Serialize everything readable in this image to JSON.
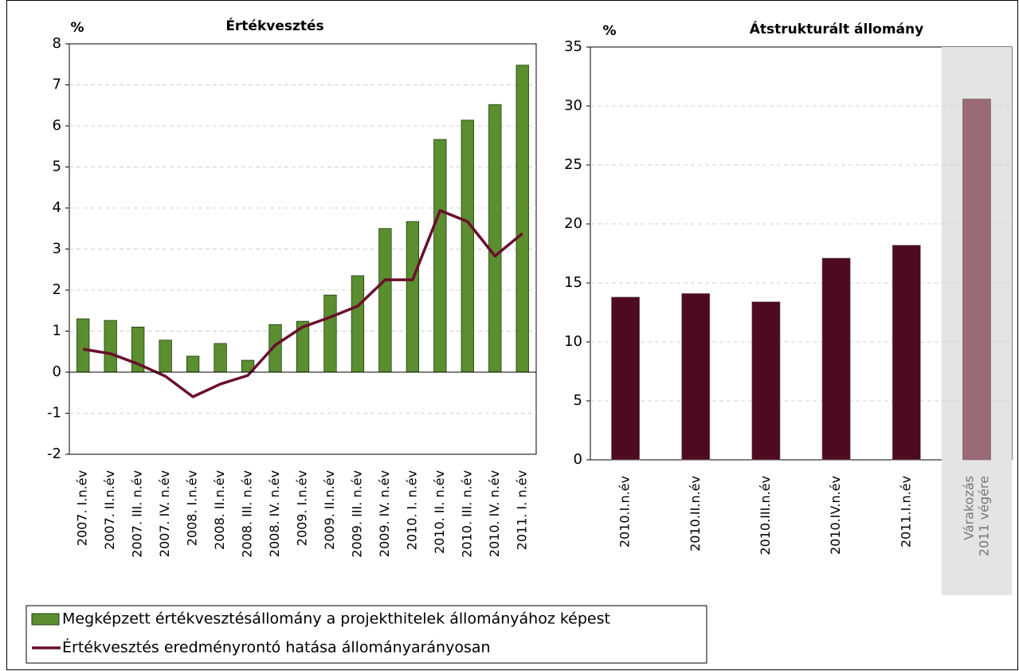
{
  "chart_data": [
    {
      "type": "bar",
      "title": "Értékvesztés",
      "ylabel": "%",
      "categories": [
        "2007. I.n.év",
        "2007. II.n.év",
        "2007. III. n.év",
        "2007. IV. n.év",
        "2008. I.n.év",
        "2008. II.n.év",
        "2008. III. n.év",
        "2008. IV. n.év",
        "2009. I.n.év",
        "2009. II.n.év",
        "2009. III. n.év",
        "2009. IV. n.év",
        "2010. I. n.év",
        "2010. II. n.év",
        "2010. III. n.év",
        "2010. IV. n.év",
        "2011. I. n.év"
      ],
      "series": [
        {
          "name": "Megképzett értékvesztésállomány a projekthitelek állományához képest",
          "type": "bar",
          "color": "#5b8e2f",
          "values": [
            1.3,
            1.26,
            1.1,
            0.78,
            0.39,
            0.7,
            0.29,
            1.16,
            1.24,
            1.88,
            2.35,
            3.5,
            3.67,
            5.67,
            6.14,
            6.52,
            7.48
          ]
        },
        {
          "name": "Értékvesztés eredményrontó hatása állományarányosan",
          "type": "line",
          "color": "#6a0f2c",
          "values": [
            0.56,
            0.45,
            0.2,
            -0.1,
            -0.6,
            -0.29,
            -0.08,
            0.66,
            1.1,
            1.34,
            1.61,
            2.25,
            2.25,
            3.94,
            3.67,
            2.83,
            3.38
          ]
        }
      ],
      "ylim": [
        -2,
        8
      ],
      "yticks": [
        -2,
        -1,
        0,
        1,
        2,
        3,
        4,
        5,
        6,
        7,
        8
      ],
      "grid": true,
      "legend": "bottom"
    },
    {
      "type": "bar",
      "title": "Átstrukturált állomány",
      "ylabel": "%",
      "categories": [
        "2010.I.n.év",
        "2010.II.n.év",
        "2010.III.n.év",
        "2010.IV.n.év",
        "2011.I.n.év",
        "Várakozás\n2011 végére"
      ],
      "values": [
        13.8,
        14.1,
        13.4,
        17.1,
        18.2,
        30.6
      ],
      "colors": [
        "#4e0a1e",
        "#4e0a1e",
        "#4e0a1e",
        "#4e0a1e",
        "#4e0a1e",
        "#9a6b75"
      ],
      "shade": [
        null,
        null,
        null,
        null,
        null,
        "#e4e4e4"
      ],
      "ylim": [
        0,
        35
      ],
      "yticks": [
        0,
        5,
        10,
        15,
        20,
        25,
        30,
        35
      ],
      "grid": true
    }
  ]
}
